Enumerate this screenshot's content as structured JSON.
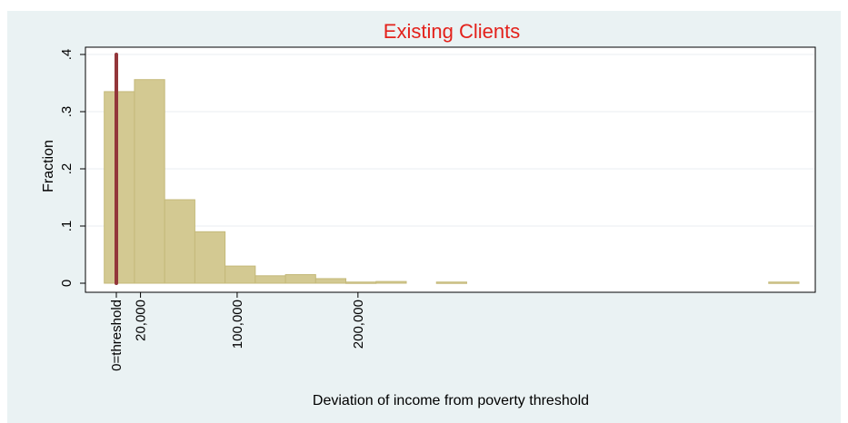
{
  "chart_data": {
    "type": "bar",
    "title": "Existing Clients",
    "xlabel": "Deviation of income from poverty threshold",
    "ylabel": "Fraction",
    "ylim": [
      0,
      0.4
    ],
    "yticks": [
      {
        "value": 0,
        "label": "0"
      },
      {
        "value": 0.1,
        "label": ".1"
      },
      {
        "value": 0.2,
        "label": ".2"
      },
      {
        "value": 0.3,
        "label": ".3"
      },
      {
        "value": 0.4,
        "label": ".4"
      }
    ],
    "xlim": [
      -10000,
      560000
    ],
    "xticks": [
      {
        "value": 0,
        "label": "0=threshold"
      },
      {
        "value": 20000,
        "label": "20,000"
      },
      {
        "value": 100000,
        "label": "100,000"
      },
      {
        "value": 200000,
        "label": "200,000"
      }
    ],
    "bin_width": 25000,
    "bins": [
      {
        "x0": -10000,
        "x1": 15000,
        "value": 0.335
      },
      {
        "x0": 15000,
        "x1": 40000,
        "value": 0.356
      },
      {
        "x0": 40000,
        "x1": 65000,
        "value": 0.146
      },
      {
        "x0": 65000,
        "x1": 90000,
        "value": 0.09
      },
      {
        "x0": 90000,
        "x1": 115000,
        "value": 0.03
      },
      {
        "x0": 115000,
        "x1": 140000,
        "value": 0.013
      },
      {
        "x0": 140000,
        "x1": 165000,
        "value": 0.015
      },
      {
        "x0": 165000,
        "x1": 190000,
        "value": 0.008
      },
      {
        "x0": 190000,
        "x1": 215000,
        "value": 0.002
      },
      {
        "x0": 215000,
        "x1": 240000,
        "value": 0.003
      },
      {
        "x0": 265000,
        "x1": 290000,
        "value": 0.002
      },
      {
        "x0": 540000,
        "x1": 565000,
        "value": 0.002
      }
    ],
    "reference_line": {
      "x": 0,
      "y0": 0,
      "y1": 0.4
    },
    "grid": true,
    "legend": "none"
  },
  "colors": {
    "outer_background": "#eaf2f3",
    "plot_background": "#ffffff",
    "bar_fill": "#d3c992",
    "bar_edge": "#c4b979",
    "reference_line": "#93363a",
    "title": "#e3211b",
    "gridline": "#e8eef0"
  }
}
